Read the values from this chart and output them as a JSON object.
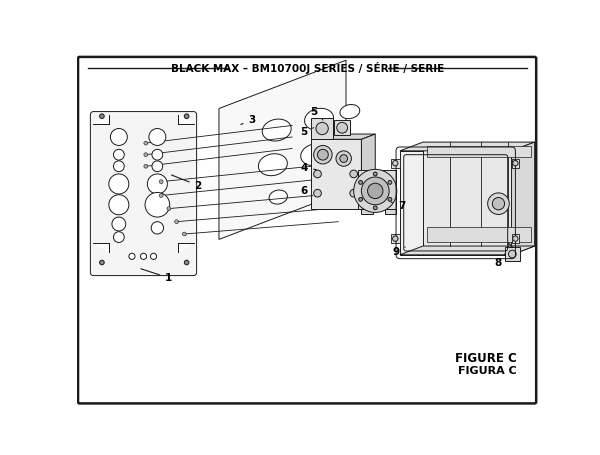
{
  "title": "BLACK MAX – BM10700J SERIES / SÉRIE / SERIE",
  "figure_label": "FIGURE C",
  "figura_label": "FIGURA C",
  "bg_color": "#ffffff",
  "border_color": "#1a1a1a",
  "line_color": "#1a1a1a",
  "title_fontsize": 7.5,
  "label_fontsize": 7,
  "figure_label_fontsize": 8.5
}
